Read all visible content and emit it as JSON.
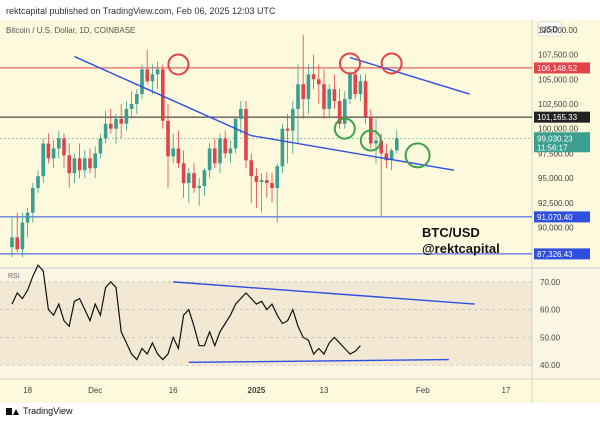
{
  "header": {
    "publish_text": "rektcapital published on TradingView.com, Feb 06, 2025 12:03 UTC"
  },
  "footer": {
    "brand": "TradingView"
  },
  "currency": "USD",
  "symbol_line": "Bitcoin / U.S. Dollar, 1D, COINBASE",
  "annotation": {
    "pair": "BTC/USD",
    "handle": "@rektcapital"
  },
  "rsi_label": "RSI",
  "colors": {
    "bg_main": "#fdf9dc",
    "bg_rsi": "#f3e8d4",
    "up": "#3b9e8f",
    "down": "#e0434a",
    "trend": "#2f4fe0",
    "circle_red": "#e0434a",
    "circle_green": "#3fa24d"
  },
  "chart_data": {
    "type": "candlestick",
    "title": "Bitcoin / U.S. Dollar, 1D, COINBASE",
    "price_axis": {
      "ylim": [
        86000,
        111000
      ],
      "ticks": [
        "110,000.00",
        "107,500.00",
        "105,000.00",
        "102,500.00",
        "100,000.00",
        "97,500.00",
        "95,000.00",
        "92,500.00",
        "90,000.00"
      ],
      "tick_values": [
        110000,
        107500,
        105000,
        102500,
        100000,
        97500,
        95000,
        92500,
        90000
      ]
    },
    "x_axis": {
      "ticks": [
        {
          "label": "18",
          "index": 3
        },
        {
          "label": "Dec",
          "index": 16
        },
        {
          "label": "16",
          "index": 31
        },
        {
          "label": "2025",
          "index": 47
        },
        {
          "label": "13",
          "index": 60
        },
        {
          "label": "Feb",
          "index": 79
        },
        {
          "label": "17",
          "index": 95
        }
      ]
    },
    "horizontal_levels": [
      {
        "name": "resistance",
        "value": 106148.52,
        "label": "106,148.52",
        "color": "#e0434a"
      },
      {
        "name": "mid",
        "value": 101165.33,
        "label": "101,165.33",
        "color": "#222222"
      },
      {
        "name": "current",
        "value": 99030.23,
        "label": "99,030.23",
        "countdown": "11:56:17",
        "color": "#3b9e8f"
      },
      {
        "name": "support",
        "value": 91070.4,
        "label": "91,070.40",
        "color": "#2f4fe0"
      },
      {
        "name": "lower-support",
        "value": 87326.43,
        "label": "87,326.43",
        "color": "#2f4fe0"
      }
    ],
    "candles": [
      [
        88000,
        91000,
        87000,
        89000
      ],
      [
        89000,
        91500,
        87500,
        87800
      ],
      [
        87800,
        91500,
        87000,
        90500
      ],
      [
        90500,
        92000,
        89000,
        91500
      ],
      [
        91500,
        94500,
        90500,
        94000
      ],
      [
        94000,
        95800,
        93500,
        95200
      ],
      [
        95200,
        99000,
        94500,
        98500
      ],
      [
        98500,
        99500,
        96500,
        97000
      ],
      [
        97000,
        98800,
        96000,
        98000
      ],
      [
        98000,
        99800,
        97000,
        99000
      ],
      [
        99000,
        99500,
        96000,
        97300
      ],
      [
        97300,
        98500,
        94000,
        95500
      ],
      [
        95500,
        97500,
        94500,
        97000
      ],
      [
        97000,
        98500,
        95000,
        95800
      ],
      [
        95800,
        97800,
        95000,
        97000
      ],
      [
        97000,
        98000,
        95500,
        96000
      ],
      [
        96000,
        98200,
        95000,
        97500
      ],
      [
        97500,
        99500,
        97000,
        99000
      ],
      [
        99000,
        101800,
        98500,
        100500
      ],
      [
        100500,
        102000,
        99500,
        100000
      ],
      [
        100000,
        101500,
        98500,
        101000
      ],
      [
        101000,
        102500,
        99000,
        100500
      ],
      [
        100500,
        102800,
        99800,
        102000
      ],
      [
        102000,
        103800,
        101000,
        102500
      ],
      [
        102500,
        104000,
        101500,
        103500
      ],
      [
        103500,
        106500,
        103000,
        106000
      ],
      [
        106000,
        108000,
        104500,
        104800
      ],
      [
        104800,
        106500,
        103500,
        105500
      ],
      [
        105500,
        106800,
        104000,
        106000
      ],
      [
        106000,
        106500,
        100000,
        100800
      ],
      [
        100800,
        102500,
        94000,
        97200
      ],
      [
        97200,
        99500,
        96500,
        98000
      ],
      [
        98000,
        99800,
        96000,
        96500
      ],
      [
        96500,
        97800,
        93000,
        94500
      ],
      [
        94500,
        96000,
        92500,
        95500
      ],
      [
        95500,
        96500,
        93500,
        94000
      ],
      [
        94000,
        95000,
        92200,
        94200
      ],
      [
        94200,
        96000,
        93200,
        95800
      ],
      [
        95800,
        98500,
        95000,
        98000
      ],
      [
        98000,
        99000,
        96000,
        96500
      ],
      [
        96500,
        99500,
        95500,
        99000
      ],
      [
        99000,
        99800,
        97000,
        97500
      ],
      [
        97500,
        98800,
        96500,
        98000
      ],
      [
        98000,
        101200,
        97500,
        101000
      ],
      [
        101000,
        102800,
        99500,
        102000
      ],
      [
        102000,
        102800,
        96000,
        96800
      ],
      [
        96800,
        97500,
        92500,
        95200
      ],
      [
        95200,
        96000,
        92000,
        94600
      ],
      [
        94600,
        95500,
        91500,
        94800
      ],
      [
        94800,
        95600,
        93000,
        94500
      ],
      [
        94500,
        95500,
        92500,
        94000
      ],
      [
        94000,
        96500,
        90500,
        96200
      ],
      [
        96200,
        100500,
        95500,
        100000
      ],
      [
        100000,
        101500,
        96500,
        99800
      ],
      [
        99800,
        102800,
        97500,
        102000
      ],
      [
        102000,
        106500,
        98500,
        104500
      ],
      [
        104500,
        109500,
        101000,
        103000
      ],
      [
        103000,
        106500,
        101500,
        105500
      ],
      [
        105500,
        107500,
        104000,
        105000
      ],
      [
        105000,
        106500,
        102500,
        104500
      ],
      [
        104500,
        106000,
        101000,
        102000
      ],
      [
        102000,
        104500,
        101000,
        104000
      ],
      [
        104000,
        105500,
        102000,
        102800
      ],
      [
        102800,
        104000,
        100000,
        100500
      ],
      [
        100500,
        103800,
        100000,
        103000
      ],
      [
        103000,
        105800,
        102500,
        105500
      ],
      [
        105500,
        106200,
        103000,
        103500
      ],
      [
        103500,
        105500,
        102800,
        104800
      ],
      [
        104800,
        105500,
        100500,
        101200
      ],
      [
        101200,
        102000,
        98000,
        98500
      ],
      [
        98500,
        101000,
        96500,
        98800
      ],
      [
        98800,
        99500,
        91200,
        97500
      ],
      [
        97500,
        98500,
        96000,
        96800
      ],
      [
        96800,
        98000,
        95800,
        97800
      ],
      [
        97800,
        99800,
        97500,
        99030.23
      ]
    ],
    "rsi": {
      "ylim": [
        35,
        75
      ],
      "ticks": [
        "70.00",
        "60.00",
        "50.00",
        "40.00"
      ],
      "tick_values": [
        70,
        60,
        50,
        40
      ],
      "values": [
        62,
        66,
        64,
        67,
        72,
        76,
        74,
        60,
        58,
        62,
        56,
        54,
        63,
        64,
        60,
        56,
        62,
        58,
        68,
        70,
        68,
        52,
        48,
        44,
        42,
        46,
        44,
        48,
        44,
        42,
        44,
        50,
        46,
        58,
        60,
        54,
        47,
        47,
        52,
        47,
        52,
        55,
        58,
        62,
        64,
        66,
        64,
        62,
        63,
        60,
        62,
        58,
        55,
        56,
        60,
        54,
        50,
        49,
        44,
        46,
        44,
        48,
        50,
        48,
        46,
        44,
        45,
        47
      ]
    },
    "trendlines": [
      {
        "name": "price-trend-left",
        "pane": "price",
        "from": [
          12,
          107300
        ],
        "to": [
          46,
          99300
        ]
      },
      {
        "name": "price-trend-right",
        "pane": "price",
        "from": [
          65,
          107200
        ],
        "to": [
          88,
          103500
        ]
      },
      {
        "name": "price-trend-lower",
        "pane": "price",
        "from": [
          46,
          99300
        ],
        "to": [
          85,
          95800
        ]
      },
      {
        "name": "rsi-trend-upper",
        "pane": "rsi",
        "from": [
          31,
          70
        ],
        "to": [
          89,
          62
        ]
      },
      {
        "name": "rsi-trend-lower",
        "pane": "rsi",
        "from": [
          34,
          41
        ],
        "to": [
          84,
          42
        ]
      }
    ],
    "circles": [
      {
        "color": "red",
        "index": 32,
        "value": 106500
      },
      {
        "color": "red",
        "index": 65,
        "value": 106600
      },
      {
        "color": "red",
        "index": 73,
        "value": 106600
      },
      {
        "color": "green",
        "index": 64,
        "value": 100000
      },
      {
        "color": "green",
        "index": 69,
        "value": 98800
      },
      {
        "color": "green",
        "index": 78,
        "value": 97300
      }
    ]
  }
}
